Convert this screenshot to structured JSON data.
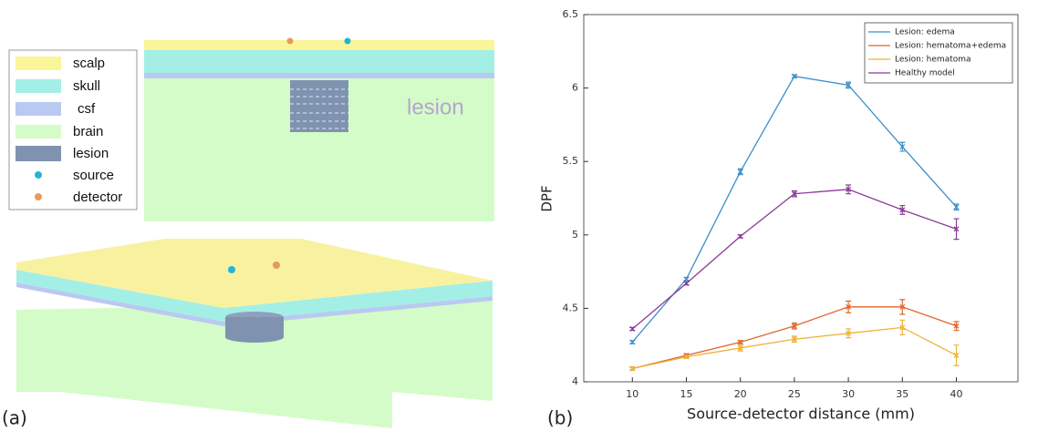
{
  "panel_a": {
    "label": "(a)",
    "lesion_text": "lesion",
    "legend": [
      "scalp",
      "skull",
      "csf",
      "brain",
      "lesion",
      "source",
      "detector"
    ]
  },
  "chart_data": {
    "type": "line",
    "label": "(b)",
    "x_label": "Source-detector distance (mm)",
    "y_label": "DPF",
    "x": [
      10,
      15,
      20,
      25,
      30,
      35,
      40
    ],
    "xlim": [
      5.5,
      45.7
    ],
    "ylim": [
      4,
      6.5
    ],
    "xticks": [
      10,
      15,
      20,
      25,
      30,
      35,
      40
    ],
    "yticks": [
      4,
      4.5,
      5,
      5.5,
      6,
      6.5
    ],
    "legend_position": "upper right",
    "series": [
      {
        "name": "Lesion: edema",
        "color": "#3b8fc8",
        "values": [
          4.27,
          4.7,
          5.43,
          6.08,
          6.02,
          5.6,
          5.19
        ],
        "errors": [
          0.01,
          0.01,
          0.02,
          0.01,
          0.02,
          0.03,
          0.02
        ]
      },
      {
        "name": "Lesion: hematoma+edema",
        "color": "#e0662d",
        "values": [
          4.09,
          4.18,
          4.27,
          4.38,
          4.51,
          4.51,
          4.38
        ],
        "errors": [
          0.01,
          0.01,
          0.01,
          0.02,
          0.04,
          0.05,
          0.03
        ]
      },
      {
        "name": "Lesion: hematoma",
        "color": "#eeb23a",
        "values": [
          4.09,
          4.17,
          4.23,
          4.29,
          4.33,
          4.37,
          4.18
        ],
        "errors": [
          0.01,
          0.01,
          0.02,
          0.02,
          0.03,
          0.05,
          0.07
        ]
      },
      {
        "name": "Healthy model",
        "color": "#8a3b98",
        "values": [
          4.36,
          4.67,
          4.99,
          5.28,
          5.31,
          5.17,
          5.04
        ],
        "errors": [
          0.01,
          0.01,
          0.01,
          0.02,
          0.03,
          0.03,
          0.07
        ]
      }
    ]
  }
}
